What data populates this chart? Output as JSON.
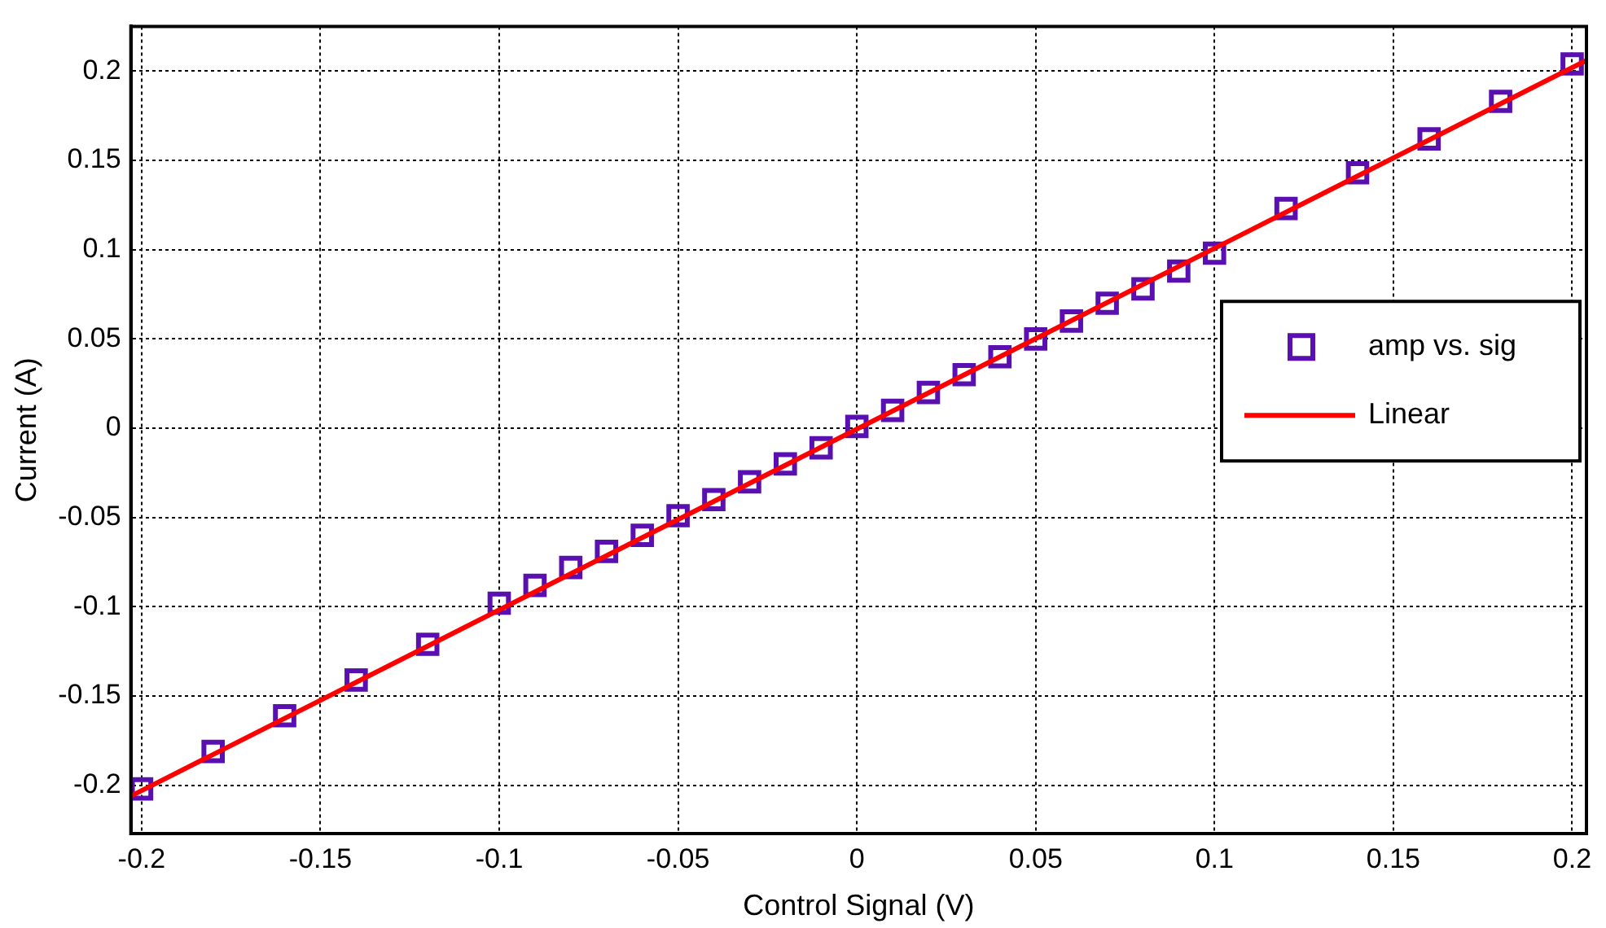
{
  "chart_data": {
    "type": "scatter",
    "xlabel": "Control Signal (V)",
    "ylabel": "Current (A)",
    "xlim": [
      -0.203,
      0.204
    ],
    "ylim": [
      -0.227,
      0.225
    ],
    "xticks": [
      -0.2,
      -0.15,
      -0.1,
      -0.05,
      0,
      0.05,
      0.1,
      0.15,
      0.2
    ],
    "yticks": [
      -0.2,
      -0.15,
      -0.1,
      -0.05,
      0,
      0.05,
      0.1,
      0.15,
      0.2
    ],
    "grid": true,
    "legend": "right",
    "series": [
      {
        "name": "amp vs. sig",
        "marker": "square",
        "color": "#5a10b0",
        "x": [
          -0.2,
          -0.18,
          -0.16,
          -0.14,
          -0.12,
          -0.1,
          -0.09,
          -0.08,
          -0.07,
          -0.06,
          -0.05,
          -0.04,
          -0.03,
          -0.02,
          -0.01,
          0,
          0.01,
          0.02,
          0.03,
          0.04,
          0.05,
          0.06,
          0.07,
          0.08,
          0.09,
          0.1,
          0.12,
          0.14,
          0.16,
          0.18,
          0.2
        ],
        "values": [
          -0.202,
          -0.181,
          -0.161,
          -0.141,
          -0.121,
          -0.098,
          -0.088,
          -0.078,
          -0.069,
          -0.06,
          -0.049,
          -0.04,
          -0.03,
          -0.02,
          -0.011,
          0.001,
          0.01,
          0.02,
          0.03,
          0.04,
          0.05,
          0.06,
          0.07,
          0.078,
          0.088,
          0.098,
          0.123,
          0.143,
          0.162,
          0.183,
          0.204
        ]
      },
      {
        "name": "Linear",
        "type": "line",
        "color": "#ff0000",
        "line_style": "solid",
        "marker": "none",
        "x": [
          -0.203,
          0.204
        ],
        "values": [
          -0.206,
          0.206
        ]
      }
    ]
  }
}
